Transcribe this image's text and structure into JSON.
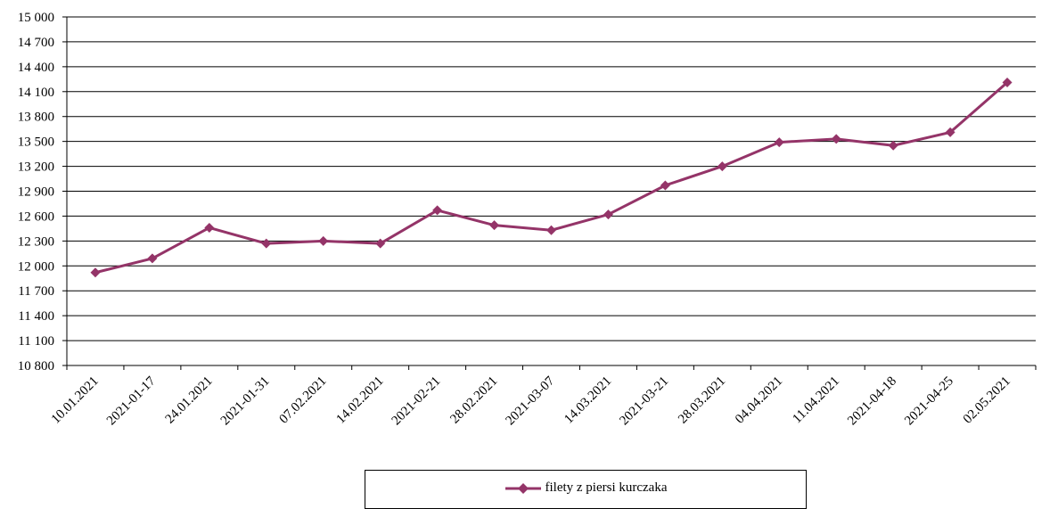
{
  "chart_data": {
    "type": "line",
    "categories": [
      "10.01.2021",
      "2021-01-17",
      "24.01.2021",
      "2021-01-31",
      "07.02.2021",
      "14.02.2021",
      "2021-02-21",
      "28.02.2021",
      "2021-03-07",
      "14.03.2021",
      "2021-03-21",
      "28.03.2021",
      "04.04.2021",
      "11.04.2021",
      "2021-04-18",
      "2021-04-25",
      "02.05.2021"
    ],
    "series": [
      {
        "name": "filety z piersi kurczaka",
        "color": "#943468",
        "marker": "diamond",
        "values": [
          11920,
          12090,
          12460,
          12270,
          12300,
          12270,
          12670,
          12490,
          12430,
          12620,
          12970,
          13200,
          13490,
          13530,
          13450,
          13610,
          14210
        ]
      }
    ],
    "yticks": [
      "10 800",
      "11 100",
      "11 400",
      "11 700",
      "12 000",
      "12 300",
      "12 600",
      "12 900",
      "13 200",
      "13 500",
      "13 800",
      "14 100",
      "14 400",
      "14 700",
      "15 000"
    ],
    "ylim": [
      10800,
      15000
    ],
    "ystep": 300,
    "grid": "horizontal",
    "legend_position": "bottom",
    "title": "",
    "xlabel": "",
    "ylabel": ""
  }
}
